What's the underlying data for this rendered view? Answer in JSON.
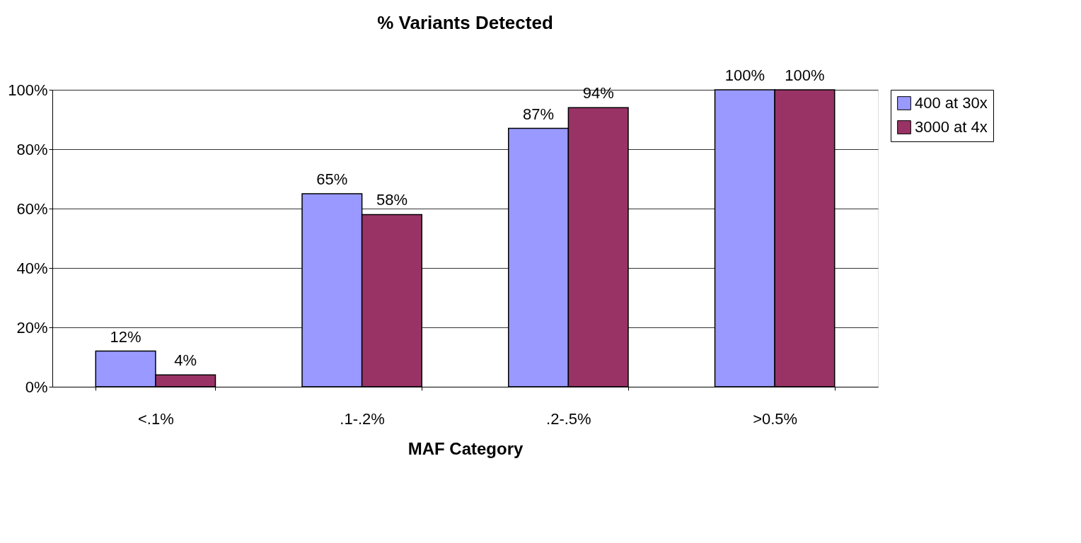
{
  "chart_data": {
    "type": "bar",
    "title": "% Variants Detected",
    "xlabel": "MAF Category",
    "categories": [
      "<.1%",
      ".1-.2%",
      ".2-.5%",
      ">0.5%"
    ],
    "series": [
      {
        "name": "400 at 30x",
        "color": "#9999ff",
        "values": [
          12,
          65,
          87,
          100
        ],
        "value_labels": [
          "12%",
          "65%",
          "87%",
          "100%"
        ]
      },
      {
        "name": "3000 at 4x",
        "color": "#993366",
        "values": [
          4,
          58,
          94,
          100
        ],
        "value_labels": [
          "4%",
          "58%",
          "94%",
          "100%"
        ]
      }
    ],
    "ylim": [
      0,
      100
    ],
    "yticks": [
      {
        "value": 0,
        "label": "0%"
      },
      {
        "value": 20,
        "label": "20%"
      },
      {
        "value": 40,
        "label": "40%"
      },
      {
        "value": 60,
        "label": "60%"
      },
      {
        "value": 80,
        "label": "80%"
      },
      {
        "value": 100,
        "label": "100%"
      }
    ],
    "grid": "y",
    "legend": "right"
  }
}
